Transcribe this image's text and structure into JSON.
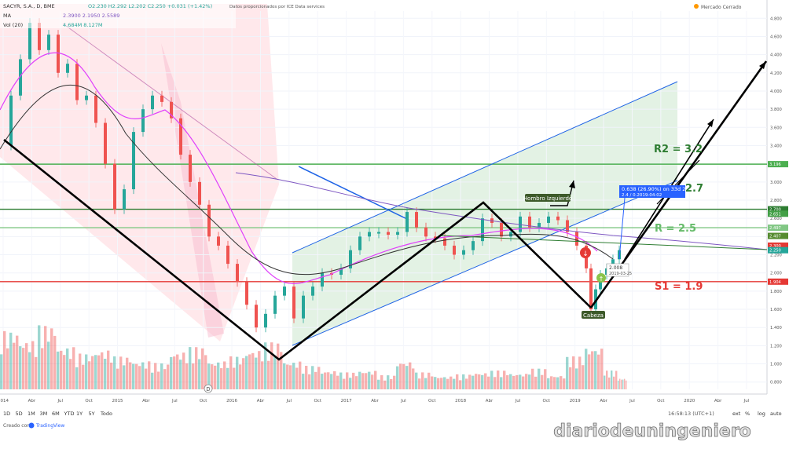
{
  "header": {
    "symbol": "SACYR, S.A., D, BME",
    "ohlc": "O2.230 H2.292 L2.202 C2.250 +0.031 (+1.42%)",
    "delayed_note": "Datos proporcionados por ICE Data services",
    "ma_label": "MA",
    "ma_values": "2.3900 2.1950 2.5589",
    "vol_label": "Vol (20)",
    "vol_values": "4.684M 8.127M",
    "market_status": "Mercado Cerrado",
    "market_status_word": "Cerrado"
  },
  "toolbar": {
    "ranges": [
      "1D",
      "5D",
      "1M",
      "3M",
      "6M",
      "YTD",
      "1Y",
      "5Y",
      "Todo"
    ],
    "time": "16:58:13 (UTC+1)",
    "options": [
      "ext",
      "%",
      "log",
      "auto"
    ]
  },
  "footer": {
    "created_with": "Creado con",
    "brand": "TradingView"
  },
  "watermark": "diariodeuningeniero",
  "annotations": {
    "r2": "R2 = 3.2",
    "r_partial": "2.7",
    "r": "R = 2.5",
    "s1": "S1 = 1.9",
    "left_shoulder": "Hombro Izquierdo",
    "head": "Cabeza",
    "measure_line1": "0.638 (26.90%) on 33d 2h",
    "measure_line2": "2.4 / 0.2019-04-02",
    "hover_value": "2.008",
    "hover_date": "2019-03-25"
  },
  "chart_data": {
    "type": "line",
    "title": "SACYR, S.A., D, BME",
    "xlabel": "",
    "ylabel": "",
    "x_ticks": [
      "2014",
      "Abr",
      "Jul",
      "Oct",
      "2015",
      "Abr",
      "Jul",
      "Oct",
      "2016",
      "Abr",
      "Jul",
      "Oct",
      "2017",
      "Abr",
      "Jul",
      "Oct",
      "2018",
      "Abr",
      "Jul",
      "Oct",
      "2019",
      "Abr",
      "Jul",
      "Oct",
      "2020",
      "Abr",
      "Jul"
    ],
    "y_ticks": [
      "4.800",
      "4.600",
      "4.400",
      "4.200",
      "4.000",
      "3.800",
      "3.600",
      "3.400",
      "3.200",
      "3.000",
      "2.800",
      "2.600",
      "2.400",
      "2.200",
      "2.000",
      "1.800",
      "1.600",
      "1.400",
      "1.200",
      "1.000",
      "0.800"
    ],
    "y_range": [
      0.72,
      4.88
    ],
    "price_tags": [
      "3.196",
      "2.700",
      "2.651",
      "2.497",
      "2.407",
      "2.300",
      "2.250",
      "1.904"
    ],
    "horizontal_levels": [
      {
        "value": 3.196,
        "color": "#4caf50"
      },
      {
        "value": 2.7,
        "color": "#2e7d32"
      },
      {
        "value": 2.497,
        "color": "#81c784"
      },
      {
        "value": 1.904,
        "color": "#e53935"
      }
    ],
    "price": [
      {
        "x": 0,
        "y": 3.4
      },
      {
        "x": 12,
        "y": 3.95
      },
      {
        "x": 24,
        "y": 4.35
      },
      {
        "x": 36,
        "y": 4.75
      },
      {
        "x": 48,
        "y": 4.45
      },
      {
        "x": 60,
        "y": 4.62
      },
      {
        "x": 72,
        "y": 4.2
      },
      {
        "x": 84,
        "y": 4.3
      },
      {
        "x": 96,
        "y": 3.9
      },
      {
        "x": 108,
        "y": 3.95
      },
      {
        "x": 120,
        "y": 3.65
      },
      {
        "x": 132,
        "y": 3.2
      },
      {
        "x": 144,
        "y": 2.7
      },
      {
        "x": 156,
        "y": 2.92
      },
      {
        "x": 168,
        "y": 3.55
      },
      {
        "x": 180,
        "y": 3.8
      },
      {
        "x": 192,
        "y": 3.95
      },
      {
        "x": 204,
        "y": 3.88
      },
      {
        "x": 216,
        "y": 3.7
      },
      {
        "x": 228,
        "y": 3.3
      },
      {
        "x": 240,
        "y": 3.0
      },
      {
        "x": 252,
        "y": 2.75
      },
      {
        "x": 264,
        "y": 2.4
      },
      {
        "x": 276,
        "y": 2.3
      },
      {
        "x": 288,
        "y": 2.1
      },
      {
        "x": 300,
        "y": 1.9
      },
      {
        "x": 312,
        "y": 1.65
      },
      {
        "x": 324,
        "y": 1.4
      },
      {
        "x": 336,
        "y": 1.55
      },
      {
        "x": 348,
        "y": 1.75
      },
      {
        "x": 360,
        "y": 1.85
      },
      {
        "x": 372,
        "y": 1.5
      },
      {
        "x": 384,
        "y": 1.75
      },
      {
        "x": 396,
        "y": 1.85
      },
      {
        "x": 408,
        "y": 2.0
      },
      {
        "x": 420,
        "y": 1.98
      },
      {
        "x": 432,
        "y": 2.05
      },
      {
        "x": 444,
        "y": 2.25
      },
      {
        "x": 456,
        "y": 2.4
      },
      {
        "x": 468,
        "y": 2.45
      },
      {
        "x": 480,
        "y": 2.45
      },
      {
        "x": 492,
        "y": 2.42
      },
      {
        "x": 504,
        "y": 2.45
      },
      {
        "x": 516,
        "y": 2.67
      },
      {
        "x": 528,
        "y": 2.5
      },
      {
        "x": 540,
        "y": 2.4
      },
      {
        "x": 552,
        "y": 2.38
      },
      {
        "x": 564,
        "y": 2.3
      },
      {
        "x": 576,
        "y": 2.2
      },
      {
        "x": 588,
        "y": 2.25
      },
      {
        "x": 600,
        "y": 2.35
      },
      {
        "x": 612,
        "y": 2.6
      },
      {
        "x": 624,
        "y": 2.55
      },
      {
        "x": 636,
        "y": 2.4
      },
      {
        "x": 648,
        "y": 2.45
      },
      {
        "x": 660,
        "y": 2.62
      },
      {
        "x": 672,
        "y": 2.5
      },
      {
        "x": 684,
        "y": 2.55
      },
      {
        "x": 696,
        "y": 2.62
      },
      {
        "x": 708,
        "y": 2.58
      },
      {
        "x": 720,
        "y": 2.45
      },
      {
        "x": 732,
        "y": 2.3
      },
      {
        "x": 744,
        "y": 2.05
      },
      {
        "x": 750,
        "y": 1.6
      },
      {
        "x": 756,
        "y": 1.82
      },
      {
        "x": 762,
        "y": 1.98
      },
      {
        "x": 770,
        "y": 2.05
      },
      {
        "x": 778,
        "y": 2.15
      },
      {
        "x": 786,
        "y": 2.25
      }
    ],
    "volume": [
      {
        "x": 0,
        "v": 0.62
      },
      {
        "x": 24,
        "v": 0.52
      },
      {
        "x": 48,
        "v": 0.68
      },
      {
        "x": 72,
        "v": 0.45
      },
      {
        "x": 96,
        "v": 0.38
      },
      {
        "x": 120,
        "v": 0.42
      },
      {
        "x": 144,
        "v": 0.35
      },
      {
        "x": 168,
        "v": 0.3
      },
      {
        "x": 192,
        "v": 0.28
      },
      {
        "x": 216,
        "v": 0.4
      },
      {
        "x": 240,
        "v": 0.45
      },
      {
        "x": 264,
        "v": 0.3
      },
      {
        "x": 288,
        "v": 0.35
      },
      {
        "x": 312,
        "v": 0.42
      },
      {
        "x": 336,
        "v": 0.5
      },
      {
        "x": 360,
        "v": 0.3
      },
      {
        "x": 384,
        "v": 0.25
      },
      {
        "x": 408,
        "v": 0.2
      },
      {
        "x": 432,
        "v": 0.18
      },
      {
        "x": 456,
        "v": 0.2
      },
      {
        "x": 480,
        "v": 0.15
      },
      {
        "x": 504,
        "v": 0.3
      },
      {
        "x": 528,
        "v": 0.18
      },
      {
        "x": 552,
        "v": 0.14
      },
      {
        "x": 576,
        "v": 0.16
      },
      {
        "x": 600,
        "v": 0.18
      },
      {
        "x": 624,
        "v": 0.2
      },
      {
        "x": 648,
        "v": 0.17
      },
      {
        "x": 672,
        "v": 0.22
      },
      {
        "x": 696,
        "v": 0.15
      },
      {
        "x": 720,
        "v": 0.35
      },
      {
        "x": 744,
        "v": 0.45
      },
      {
        "x": 768,
        "v": 0.2
      },
      {
        "x": 786,
        "v": 0.12
      }
    ]
  },
  "colors": {
    "up": "#26a69a",
    "down": "#ef5350",
    "channel": "#1e63e6",
    "green_zone": "#c8e6c9",
    "red_zone": "#ffcdd2",
    "r2_text": "#2e7d32",
    "s1_text": "#e53935",
    "r_text": "#66bb6a"
  }
}
